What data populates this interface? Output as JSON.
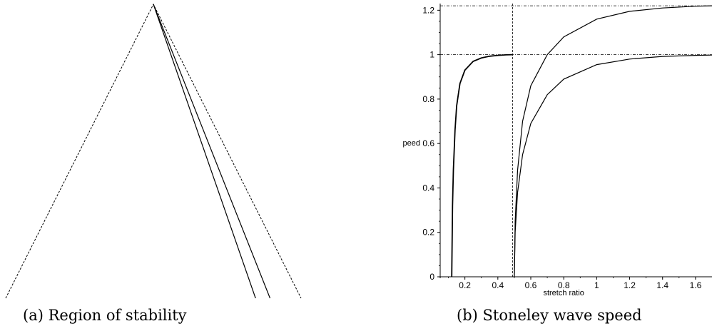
{
  "captions": {
    "a": "(a) Region of stability",
    "b": "(b) Stoneley wave speed"
  },
  "chart_data": [
    {
      "type": "line",
      "title": "",
      "series": [
        {
          "values": [
            [
              0,
              0
            ],
            [
              0.5,
              1
            ],
            [
              1,
              0
            ]
          ],
          "style": "dashed"
        },
        {
          "values": [
            [
              0.5,
              1
            ],
            [
              0.846,
              0
            ]
          ],
          "style": "solid"
        },
        {
          "values": [
            [
              0.5,
              1
            ],
            [
              0.895,
              0
            ]
          ],
          "style": "solid"
        }
      ]
    },
    {
      "type": "line",
      "xlabel": "stretch ratio",
      "ylabel": "peed",
      "xlim": [
        0.05,
        1.7
      ],
      "ylim": [
        0,
        1.23
      ],
      "x_ticks": [
        "0.2",
        "0.4",
        "0.6",
        "0.8",
        "1",
        "1.2",
        "1.4",
        "1.6"
      ],
      "y_ticks": [
        "0",
        "0.2",
        "0.4",
        "0.6",
        "0.8",
        "1",
        "1.2"
      ],
      "reference_lines": {
        "vertical_x": 0.49,
        "horizontal_y": [
          1,
          1.22
        ]
      },
      "series": [
        {
          "x": [
            0.12,
            0.125,
            0.13,
            0.14,
            0.15,
            0.17,
            0.2,
            0.25,
            0.3,
            0.35,
            0.4,
            0.45,
            0.49
          ],
          "y": [
            0,
            0.32,
            0.48,
            0.66,
            0.77,
            0.87,
            0.93,
            0.97,
            0.985,
            0.993,
            0.997,
            0.999,
            1.0
          ]
        },
        {
          "x": [
            0.5,
            0.505,
            0.52,
            0.55,
            0.6,
            0.7,
            0.8,
            1.0,
            1.2,
            1.4,
            1.6,
            1.7
          ],
          "y": [
            0,
            0.25,
            0.48,
            0.7,
            0.86,
            1.0,
            1.08,
            1.16,
            1.195,
            1.21,
            1.218,
            1.22
          ]
        },
        {
          "x": [
            0.5,
            0.505,
            0.52,
            0.55,
            0.6,
            0.7,
            0.8,
            1.0,
            1.2,
            1.4,
            1.6,
            1.7
          ],
          "y": [
            0,
            0.2,
            0.38,
            0.55,
            0.69,
            0.82,
            0.89,
            0.955,
            0.98,
            0.992,
            0.997,
            0.998
          ]
        }
      ]
    }
  ]
}
